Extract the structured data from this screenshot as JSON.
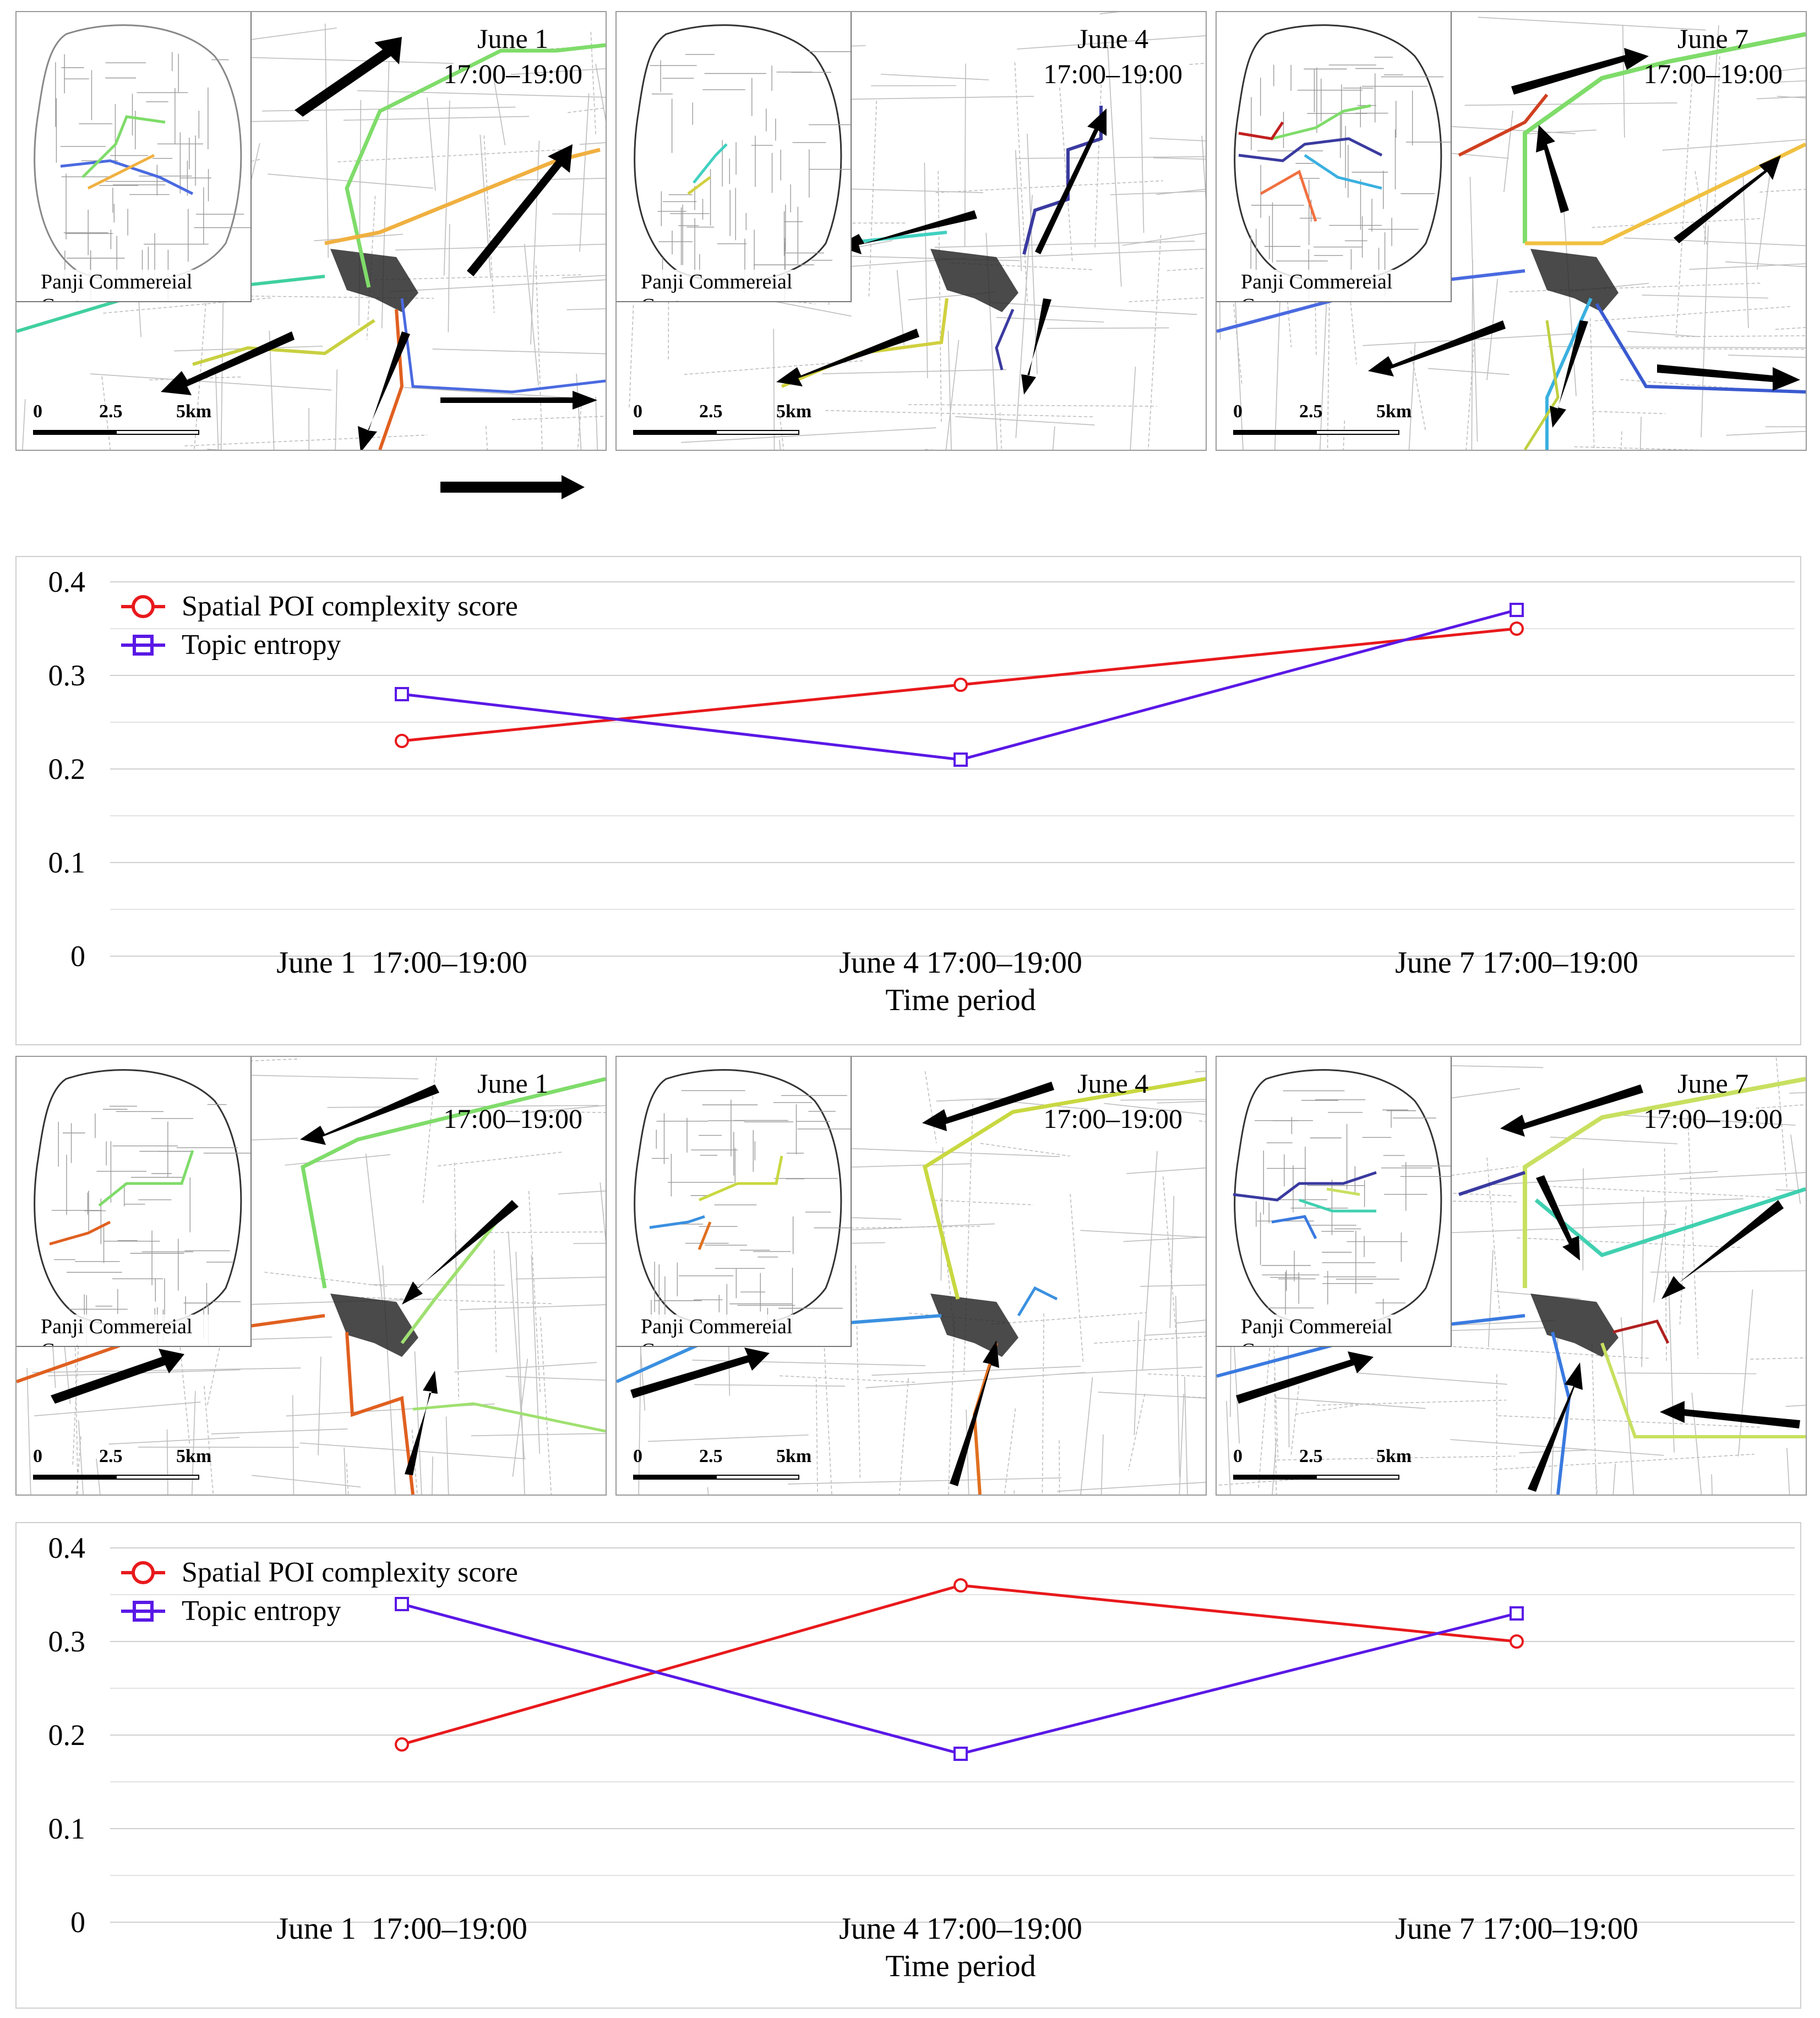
{
  "map_rows": [
    {
      "panels": [
        {
          "title_date": "June 1",
          "title_time": "17:00–19:00",
          "center_label": "Panji Commereial Center"
        },
        {
          "title_date": "June 4",
          "title_time": "17:00–19:00",
          "center_label": "Panji Commereial Center"
        },
        {
          "title_date": "June 7",
          "title_time": "17:00–19:00",
          "center_label": "Panji Commereial Center"
        }
      ]
    },
    {
      "panels": [
        {
          "title_date": "June 1",
          "title_time": "17:00–19:00",
          "center_label": "Panji Commereial Center"
        },
        {
          "title_date": "June 4",
          "title_time": "17:00–19:00",
          "center_label": "Panji Commereial Center"
        },
        {
          "title_date": "June 7",
          "title_time": "17:00–19:00",
          "center_label": "Panji Commereial Center"
        }
      ]
    }
  ],
  "scale_bar": {
    "tick0": "0",
    "tick1": "2.5",
    "tick2": "5km"
  },
  "chart_data": [
    {
      "type": "line",
      "title": "",
      "xlabel": "Time period",
      "ylabel": "",
      "categories": [
        "June 1  17:00–19:00",
        "June 4 17:00–19:00",
        "June 7 17:00–19:00"
      ],
      "ylim": [
        0,
        0.4
      ],
      "yticks": [
        "0",
        "0.1",
        "0.2",
        "0.3",
        "0.4"
      ],
      "grid": true,
      "legend_position": "top-left",
      "series": [
        {
          "name": "Spatial POI complexity score",
          "color": "#e8191c",
          "marker": "circle",
          "values": [
            0.23,
            0.29,
            0.35
          ]
        },
        {
          "name": "Topic entropy",
          "color": "#5a18e6",
          "marker": "square",
          "values": [
            0.28,
            0.21,
            0.37
          ]
        }
      ]
    },
    {
      "type": "line",
      "title": "",
      "xlabel": "Time period",
      "ylabel": "",
      "categories": [
        "June 1  17:00–19:00",
        "June 4 17:00–19:00",
        "June 7 17:00–19:00"
      ],
      "ylim": [
        0,
        0.4
      ],
      "yticks": [
        "0",
        "0.1",
        "0.2",
        "0.3",
        "0.4"
      ],
      "grid": true,
      "legend_position": "top-left",
      "series": [
        {
          "name": "Spatial POI complexity score",
          "color": "#e8191c",
          "marker": "circle",
          "values": [
            0.19,
            0.36,
            0.3
          ]
        },
        {
          "name": "Topic entropy",
          "color": "#5a18e6",
          "marker": "square",
          "values": [
            0.34,
            0.18,
            0.33
          ]
        }
      ]
    }
  ]
}
